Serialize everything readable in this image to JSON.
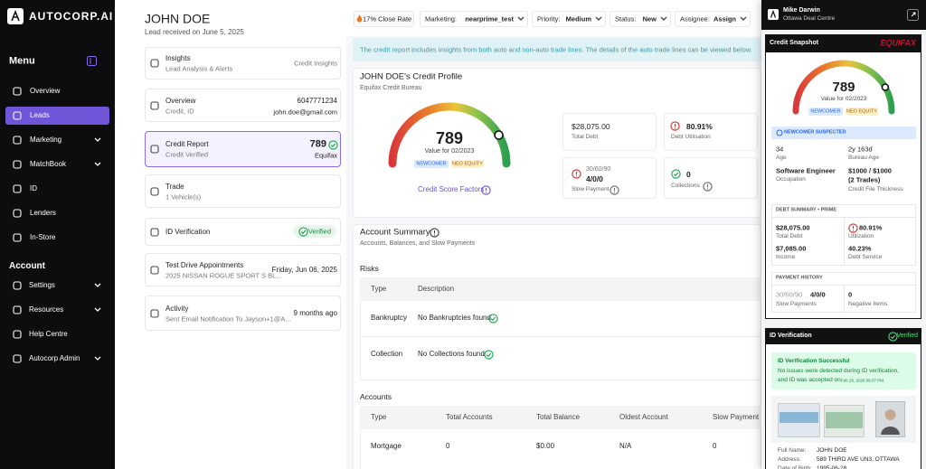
{
  "sidebar": {
    "logo": "AUTOCORP.AI",
    "menu_title": "Menu",
    "menu": [
      "Overview",
      "Leads",
      "Marketing",
      "MatchBook",
      "ID",
      "Lenders",
      "In-Store"
    ],
    "account_title": "Account",
    "account": [
      "Settings",
      "Resources",
      "Help Centre",
      "Autocorp Admin"
    ]
  },
  "header": {
    "name": "JOHN DOE",
    "received": "Lead received on June 5, 2025",
    "close_rate": "17% Close Rate",
    "filters": [
      {
        "label": "Marketing:",
        "value": "nearprime_test"
      },
      {
        "label": "Priority:",
        "value": "Medium"
      },
      {
        "label": "Status:",
        "value": "New"
      },
      {
        "label": "Assignee:",
        "value": "Assign"
      }
    ]
  },
  "cards": [
    {
      "title": "Insights",
      "subtitle": "Lead Analysis & Alerts",
      "right": "Credit Insights"
    },
    {
      "title": "Overview",
      "subtitle": "Credit, ID",
      "right": "6047771234",
      "right2": "john.doe@gmail.com"
    },
    {
      "title": "Credit Report",
      "subtitle": "Credit Verified",
      "right": 789,
      "right2": "Equifax"
    },
    {
      "title": "Trade",
      "subtitle": "1 Vehicle(s)"
    },
    {
      "title": "ID Verification",
      "right": "Verified"
    },
    {
      "title": "Test Drive Appointments",
      "subtitle": "2025 NISSAN ROGUE SPORT S BL...",
      "right": "Friday, Jun 06, 2025"
    },
    {
      "title": "Activity",
      "subtitle": "Sent Email Notification To Jayson+1@A...",
      "right": "9 months ago"
    }
  ],
  "banner": "The credit report includes insights from both auto and non-auto trade lines. The details of the auto trade lines can be viewed below.",
  "credit_profile": {
    "title": "JOHN DOE's Credit Profile",
    "subtitle": "Equifax Credit Bureau",
    "score": 789,
    "score_label": "Value for 02/2023",
    "badges": [
      "NEWCOMER",
      "NEO EQUITY"
    ],
    "factors": "Credit Score Factors",
    "stats": [
      {
        "value": "$28,075.00",
        "label": "Total Debt"
      },
      {
        "value": "80.91%",
        "label": "Debt Utilisation"
      },
      {
        "prefix": "30/60/90",
        "value": "4/0/0",
        "label": "Slow Payment"
      },
      {
        "value": 0,
        "label": "Collections"
      }
    ]
  },
  "account_summary": {
    "title": "Account Summary",
    "subtitle": "Accounts, Balances, and Slow Payments",
    "risks_title": "Risks",
    "risks_columns": [
      "Type",
      "Description"
    ],
    "risks_rows": [
      [
        "Bankruptcy",
        "No Bankruptcies found"
      ],
      [
        "Collection",
        "No Collections found"
      ]
    ],
    "accounts_title": "Accounts",
    "accounts_columns": [
      "Type",
      "Total Accounts",
      "Total Balance",
      "Oldest Account",
      "Slow Payment"
    ],
    "accounts_rows": [
      [
        "Mortgage",
        0,
        "$0.00",
        "N/A",
        0
      ]
    ]
  },
  "panel": {
    "user": "Mike Darwin",
    "location": "Ottawa Deal Centre",
    "snapshot_title": "Credit Snapshot",
    "bureau": "EQUIFAX",
    "score": 789,
    "score_label": "Value for 02/2023",
    "badges": [
      "NEWCOMER",
      "NEO EQUITY"
    ],
    "suspected": "NEWCOMER SUSPECTED",
    "profile": [
      {
        "value": 34,
        "label": "Age"
      },
      {
        "value": "2y 163d",
        "label": "Bureau Age"
      },
      {
        "value": "Software Engineer",
        "label": "Occupation"
      },
      {
        "value": "$1000 / $1000",
        "value2": "(2 Trades)",
        "label": "Credit File Thickness"
      }
    ],
    "debt_title": "DEBT SUMMARY • PRIME",
    "debt": [
      {
        "value": "$28,075.00",
        "label": "Total Debt"
      },
      {
        "value": "80.91%",
        "label": "Utilization"
      },
      {
        "value": "$7,085.00",
        "label": "Income"
      },
      {
        "value": "40.23%",
        "label": "Debt Service"
      }
    ],
    "payment_title": "PAYMENT HISTORY",
    "payment": [
      {
        "prefix": "30/60/90",
        "value": "4/0/0",
        "label": "Slow Payments"
      },
      {
        "value": 0,
        "label": "Negative Items"
      }
    ],
    "id_title": "ID Verification",
    "id_status": "Verified",
    "id_success": "ID Verification Successful",
    "id_message_1": "No issues were detected during ID verification,",
    "id_message_2": "and ID was accepted on",
    "id_date": "Feb 26, 2026 06:07 PM.",
    "fields": [
      {
        "label": "Full Name:",
        "value": "JOHN DOE"
      },
      {
        "label": "Address:",
        "value": "589 THIRD AVE UN3, OTTAWA"
      },
      {
        "label": "Date of Birth:",
        "value": "1995-06-28"
      }
    ]
  }
}
